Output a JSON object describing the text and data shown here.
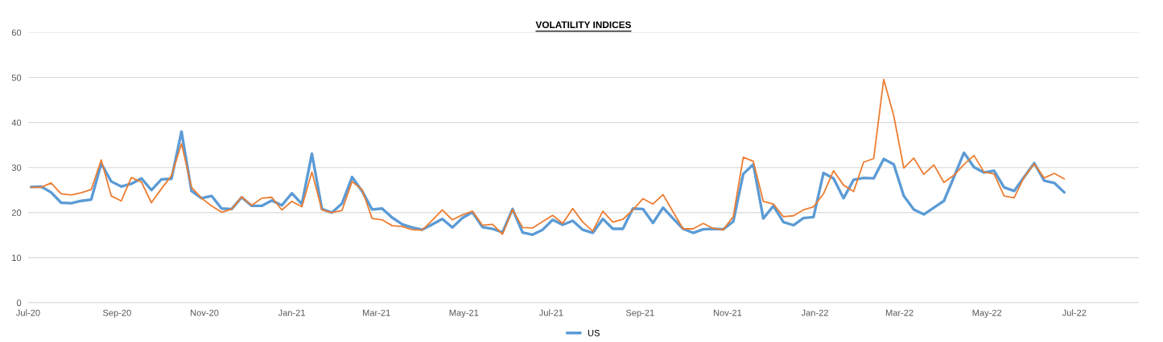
{
  "chart_data": {
    "type": "line",
    "title": "VOLATILITY INDICES",
    "x": [
      "2020-07-03",
      "2020-07-10",
      "2020-07-17",
      "2020-07-24",
      "2020-07-31",
      "2020-08-07",
      "2020-08-14",
      "2020-08-21",
      "2020-08-28",
      "2020-09-04",
      "2020-09-11",
      "2020-09-18",
      "2020-09-25",
      "2020-10-02",
      "2020-10-09",
      "2020-10-16",
      "2020-10-23",
      "2020-10-30",
      "2020-11-06",
      "2020-11-13",
      "2020-11-20",
      "2020-11-27",
      "2020-12-04",
      "2020-12-11",
      "2020-12-18",
      "2020-12-25",
      "2021-01-01",
      "2021-01-08",
      "2021-01-15",
      "2021-01-22",
      "2021-01-29",
      "2021-02-05",
      "2021-02-12",
      "2021-02-19",
      "2021-02-26",
      "2021-03-05",
      "2021-03-12",
      "2021-03-19",
      "2021-03-26",
      "2021-04-02",
      "2021-04-09",
      "2021-04-16",
      "2021-04-23",
      "2021-04-30",
      "2021-05-07",
      "2021-05-14",
      "2021-05-21",
      "2021-05-28",
      "2021-06-04",
      "2021-06-11",
      "2021-06-18",
      "2021-06-25",
      "2021-07-02",
      "2021-07-09",
      "2021-07-16",
      "2021-07-23",
      "2021-07-30",
      "2021-08-06",
      "2021-08-13",
      "2021-08-20",
      "2021-08-27",
      "2021-09-03",
      "2021-09-10",
      "2021-09-17",
      "2021-09-24",
      "2021-10-01",
      "2021-10-08",
      "2021-10-15",
      "2021-10-22",
      "2021-10-29",
      "2021-11-05",
      "2021-11-12",
      "2021-11-19",
      "2021-11-26",
      "2021-12-03",
      "2021-12-10",
      "2021-12-17",
      "2021-12-24",
      "2021-12-31",
      "2022-01-07",
      "2022-01-14",
      "2022-01-21",
      "2022-01-28",
      "2022-02-04",
      "2022-02-11",
      "2022-02-18",
      "2022-02-25",
      "2022-03-04",
      "2022-03-11",
      "2022-03-18",
      "2022-03-25",
      "2022-04-01",
      "2022-04-08",
      "2022-04-15",
      "2022-04-22",
      "2022-04-29",
      "2022-05-06",
      "2022-05-13",
      "2022-05-20",
      "2022-05-27",
      "2022-06-03",
      "2022-06-10",
      "2022-06-17",
      "2022-06-24"
    ],
    "series": [
      {
        "name": "US",
        "color": "#5b9bd5",
        "values": [
          25.7,
          25.8,
          24.5,
          22.2,
          22.1,
          22.6,
          22.9,
          30.9,
          26.9,
          25.8,
          26.4,
          27.6,
          25.0,
          27.4,
          27.5,
          38.0,
          24.8,
          23.2,
          23.7,
          20.9,
          20.8,
          23.4,
          21.5,
          21.5,
          22.7,
          21.6,
          24.3,
          21.9,
          33.1,
          20.8,
          20.0,
          22.0,
          27.9,
          24.8,
          20.7,
          20.9,
          18.9,
          17.4,
          16.7,
          16.2,
          17.4,
          18.6,
          16.7,
          18.8,
          20.1,
          16.8,
          16.4,
          15.6,
          20.8,
          15.6,
          15.1,
          16.2,
          18.4,
          17.3,
          18.2,
          16.2,
          15.5,
          18.6,
          16.4,
          16.4,
          20.9,
          20.8,
          17.7,
          21.1,
          18.7,
          16.4,
          15.5,
          16.3,
          16.4,
          16.3,
          18.0,
          28.6,
          30.7,
          18.7,
          21.5,
          17.9,
          17.2,
          18.8,
          19.0,
          28.8,
          27.6,
          23.2,
          27.3,
          27.7,
          27.6,
          31.9,
          30.7,
          23.7,
          20.7,
          19.6,
          21.1,
          22.6,
          27.9,
          33.3,
          30.1,
          28.9,
          29.3,
          25.6,
          24.8,
          27.9,
          31.0,
          27.1,
          26.6,
          24.5
        ]
      },
      {
        "color": "#ed7d31",
        "values": [
          25.6,
          25.6,
          26.6,
          24.2,
          23.9,
          24.4,
          25.1,
          31.7,
          23.7,
          22.6,
          27.8,
          26.8,
          22.2,
          25.3,
          28.2,
          35.3,
          25.6,
          23.2,
          21.5,
          20.1,
          20.8,
          23.5,
          21.6,
          23.2,
          23.4,
          20.6,
          22.5,
          21.3,
          29.0,
          20.6,
          20.0,
          20.5,
          26.9,
          25.1,
          18.7,
          18.4,
          17.1,
          16.9,
          16.2,
          16.1,
          18.3,
          20.6,
          18.4,
          19.5,
          20.3,
          17.2,
          17.4,
          15.2,
          20.7,
          16.7,
          16.6,
          18.0,
          19.4,
          17.6,
          20.9,
          17.9,
          15.9,
          20.3,
          17.9,
          18.5,
          20.6,
          23.1,
          21.9,
          24.0,
          20.2,
          16.4,
          16.4,
          17.6,
          16.5,
          16.2,
          19.1,
          32.3,
          31.4,
          22.5,
          21.9,
          19.1,
          19.3,
          20.6,
          21.3,
          24.2,
          29.3,
          26.1,
          24.7,
          31.2,
          32.0,
          49.6,
          41.5,
          29.9,
          32.1,
          28.5,
          30.6,
          26.7,
          28.3,
          30.7,
          32.7,
          29.0,
          28.6,
          23.7,
          23.3,
          27.9,
          30.8,
          27.7,
          28.7,
          27.5
        ]
      }
    ],
    "xlim": [
      "2020-07-01",
      "2022-08-15"
    ],
    "xticks": [
      {
        "value": "2020-07-01",
        "label": "Jul-20"
      },
      {
        "value": "2020-09-01",
        "label": "Sep-20"
      },
      {
        "value": "2020-11-01",
        "label": "Nov-20"
      },
      {
        "value": "2021-01-01",
        "label": "Jan-21"
      },
      {
        "value": "2021-03-01",
        "label": "Mar-21"
      },
      {
        "value": "2021-05-01",
        "label": "May-21"
      },
      {
        "value": "2021-07-01",
        "label": "Jul-21"
      },
      {
        "value": "2021-09-01",
        "label": "Sep-21"
      },
      {
        "value": "2021-11-01",
        "label": "Nov-21"
      },
      {
        "value": "2022-01-01",
        "label": "Jan-22"
      },
      {
        "value": "2022-03-01",
        "label": "Mar-22"
      },
      {
        "value": "2022-05-01",
        "label": "May-22"
      },
      {
        "value": "2022-07-01",
        "label": "Jul-22"
      }
    ],
    "ylim": [
      0,
      60
    ],
    "yticks": [
      0,
      10,
      20,
      30,
      40,
      50,
      60
    ],
    "grid": "y",
    "legend": "bottom",
    "marker": "none",
    "line_style": "solid"
  }
}
